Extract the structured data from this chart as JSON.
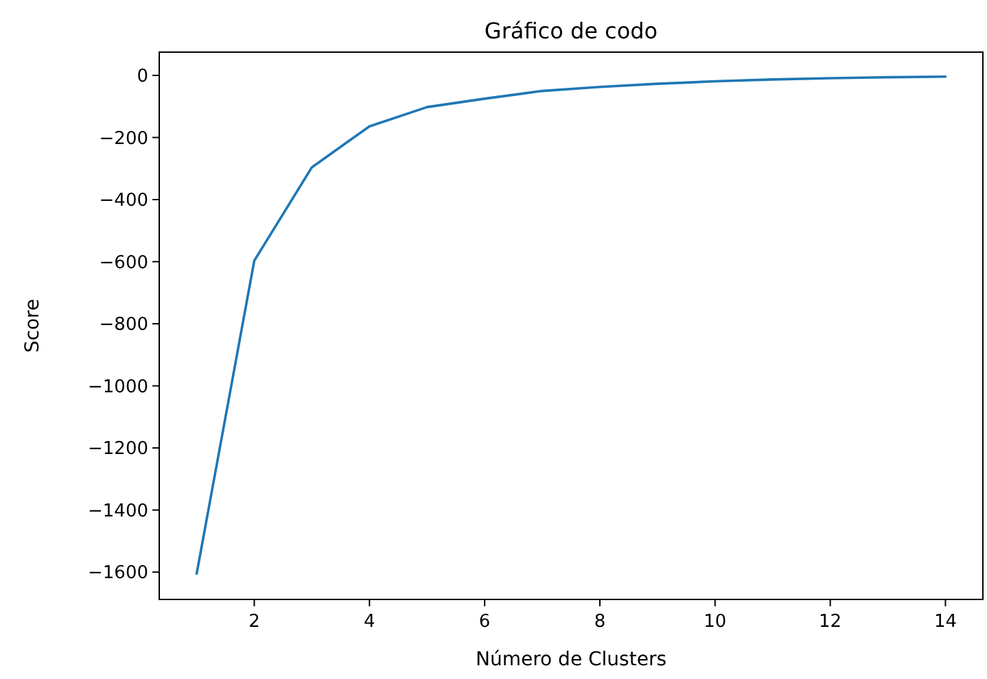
{
  "chart_data": {
    "type": "line",
    "title": "Gráfico de codo",
    "xlabel": "Número de Clusters",
    "ylabel": "Score",
    "x": [
      1,
      2,
      3,
      4,
      5,
      6,
      7,
      8,
      9,
      10,
      11,
      12,
      13,
      14
    ],
    "series": [
      {
        "color": "#1f77b4",
        "values": [
          -1605,
          -597,
          -296,
          -164,
          -102,
          -75,
          -50,
          -37,
          -27,
          -19,
          -13,
          -9,
          -6,
          -4
        ]
      }
    ],
    "xlim": [
      0.35,
      14.65
    ],
    "ylim": [
      -1688,
      75
    ],
    "xticks": [
      2,
      4,
      6,
      8,
      10,
      12,
      14
    ],
    "yticks": [
      -1600,
      -1400,
      -1200,
      -1000,
      -800,
      -600,
      -400,
      -200,
      0
    ],
    "marker": "none",
    "line_style": "solid"
  }
}
